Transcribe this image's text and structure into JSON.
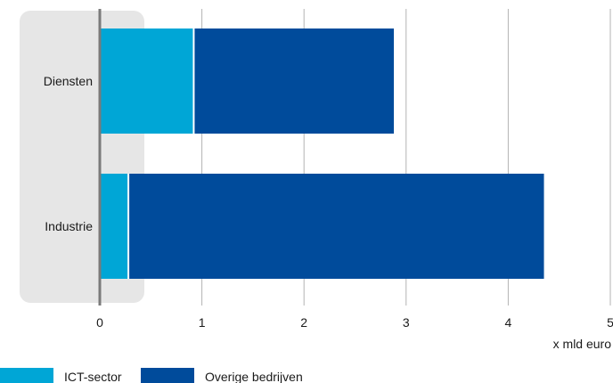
{
  "chart_data": {
    "type": "bar",
    "orientation": "horizontal",
    "stacked": true,
    "categories": [
      "Diensten",
      "Industrie"
    ],
    "series": [
      {
        "name": "ICT-sector",
        "values": [
          0.92,
          0.28
        ],
        "color": "#00a6d6"
      },
      {
        "name": "Overige bedrijven",
        "values": [
          1.96,
          4.07
        ],
        "color": "#004b9b"
      }
    ],
    "xlim": [
      0,
      5
    ],
    "xticks": [
      "0",
      "1",
      "2",
      "3",
      "4",
      "5"
    ],
    "xlabel": "x mld euro",
    "grid": true,
    "legend_position": "bottom-left",
    "category_band_color": "#e6e6e6",
    "axis_color": "#7a7a7a",
    "grid_color": "#b3b3b3"
  }
}
